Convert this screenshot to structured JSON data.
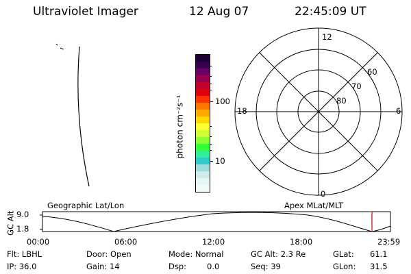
{
  "header": {
    "title": "Ultraviolet Imager",
    "date": "12 Aug 07",
    "time": "22:45:09 UT"
  },
  "colorbar": {
    "unit_label": "photon cm⁻²s⁻¹",
    "tick_100": "100",
    "tick_10": "10",
    "colors": [
      "#1a0033",
      "#3a0050",
      "#6b0066",
      "#99004d",
      "#c20030",
      "#e00010",
      "#ff3300",
      "#ff7700",
      "#ffaa00",
      "#ffd700",
      "#ffff33",
      "#d0ff33",
      "#8cff33",
      "#33ff33",
      "#33ee99",
      "#33cccc",
      "#99dddd",
      "#ccecec",
      "#e6f4f4",
      "#f4fafa"
    ]
  },
  "polar": {
    "mlt_top": "12",
    "mlt_left": "18",
    "mlt_right": "6",
    "mlt_bottom": "0",
    "lat_60": "60",
    "lat_70": "70",
    "lat_80": "80"
  },
  "timeline": {
    "left_label": "Geographic Lat/Lon",
    "right_label": "Apex MLat/MLT",
    "axis_label": "GC Alt",
    "y_top": "9.0",
    "y_bottom": "1.8",
    "ticks": [
      "00:00",
      "06:00",
      "12:00",
      "18:00",
      "23:59"
    ],
    "current_marker_color": "#cc0000"
  },
  "status": {
    "filter": "Flt: LBHL",
    "ip": "IP: 36.0",
    "door": "Door: Open",
    "gain": "Gain: 14",
    "mode": "Mode: Normal",
    "dsp_label": "Dsp:",
    "dsp_value": "0.0",
    "gc_alt": "GC Alt: 2.3 Re",
    "seq": "Seq: 39",
    "glat_label": "GLat:",
    "glat_value": "61.1",
    "glon_label": "GLon:",
    "glon_value": "31.5"
  }
}
